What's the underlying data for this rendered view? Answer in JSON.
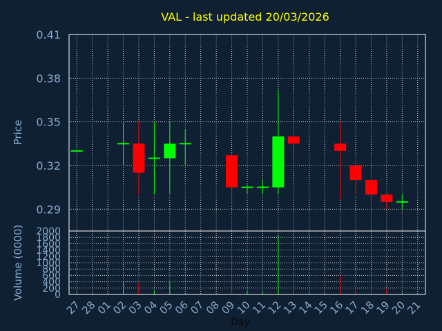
{
  "chart_data": {
    "type": "candlestick",
    "title": "VAL - last updated 20/03/2026",
    "xlabel": "Day",
    "price_panel": {
      "ylabel": "Price",
      "ylim": [
        0.275,
        0.41
      ],
      "yticks": [
        "0.41",
        "0.38",
        "0.35",
        "0.32",
        "0.29"
      ],
      "ytick_values": [
        0.41,
        0.38,
        0.35,
        0.32,
        0.29
      ]
    },
    "volume_panel": {
      "ylabel": "Volume (0000)",
      "ylim": [
        0,
        2000
      ],
      "yticks": [
        "2000",
        "1800",
        "1600",
        "1400",
        "1200",
        "1000",
        "800",
        "600",
        "400",
        "200",
        "0"
      ],
      "ytick_values": [
        2000,
        1800,
        1600,
        1400,
        1200,
        1000,
        800,
        600,
        400,
        200,
        0
      ]
    },
    "x_tick_labels": [
      "27",
      "28",
      "01",
      "02",
      "03",
      "04",
      "05",
      "06",
      "07",
      "08",
      "09",
      "10",
      "11",
      "12",
      "13",
      "14",
      "15",
      "16",
      "17",
      "18",
      "19",
      "20",
      "21"
    ],
    "candles": [
      {
        "day": "27",
        "open": 0.33,
        "high": 0.33,
        "low": 0.33,
        "close": 0.33,
        "volume": 0
      },
      {
        "day": "02",
        "open": 0.335,
        "high": 0.35,
        "low": 0.32,
        "close": 0.335,
        "volume": 420
      },
      {
        "day": "03",
        "open": 0.335,
        "high": 0.35,
        "low": 0.3,
        "close": 0.315,
        "volume": 380
      },
      {
        "day": "04",
        "open": 0.325,
        "high": 0.35,
        "low": 0.3,
        "close": 0.325,
        "volume": 120
      },
      {
        "day": "05",
        "open": 0.325,
        "high": 0.35,
        "low": 0.3,
        "close": 0.335,
        "volume": 400
      },
      {
        "day": "06",
        "open": 0.335,
        "high": 0.345,
        "low": 0.32,
        "close": 0.335,
        "volume": 0
      },
      {
        "day": "09",
        "open": 0.327,
        "high": 0.327,
        "low": 0.293,
        "close": 0.305,
        "volume": 1150
      },
      {
        "day": "10",
        "open": 0.305,
        "high": 0.307,
        "low": 0.3,
        "close": 0.305,
        "volume": 120
      },
      {
        "day": "11",
        "open": 0.305,
        "high": 0.31,
        "low": 0.3,
        "close": 0.305,
        "volume": 60
      },
      {
        "day": "12",
        "open": 0.305,
        "high": 0.372,
        "low": 0.3,
        "close": 0.34,
        "volume": 1850
      },
      {
        "day": "13",
        "open": 0.34,
        "high": 0.344,
        "low": 0.321,
        "close": 0.335,
        "volume": 370
      },
      {
        "day": "16",
        "open": 0.335,
        "high": 0.35,
        "low": 0.297,
        "close": 0.33,
        "volume": 600
      },
      {
        "day": "17",
        "open": 0.32,
        "high": 0.32,
        "low": 0.3,
        "close": 0.31,
        "volume": 250
      },
      {
        "day": "18",
        "open": 0.31,
        "high": 0.32,
        "low": 0.29,
        "close": 0.3,
        "volume": 200
      },
      {
        "day": "19",
        "open": 0.3,
        "high": 0.3,
        "low": 0.29,
        "close": 0.295,
        "volume": 200
      },
      {
        "day": "20",
        "open": 0.295,
        "high": 0.3,
        "low": 0.29,
        "close": 0.295,
        "volume": 20
      }
    ],
    "colors": {
      "background": "#0f2033",
      "title": "#ffff00",
      "axis_text": "#88aacc",
      "frame": "#ffffff",
      "grid": "#c8c8c8",
      "up": "#00ff00",
      "down": "#ff0000"
    },
    "grid": true
  }
}
